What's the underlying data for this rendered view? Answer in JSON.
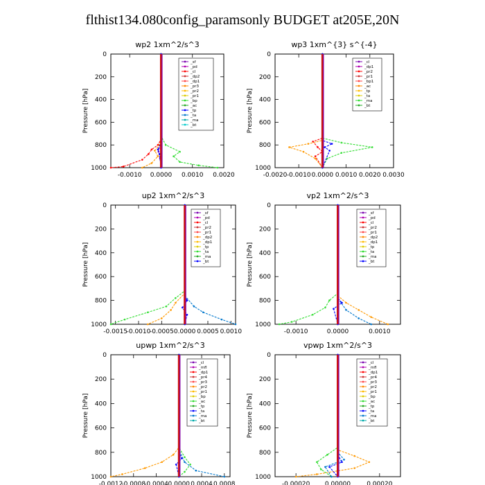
{
  "title": "flthist134.080config_paramsonly  BUDGET at205E,20N",
  "chart_data": [
    {
      "type": "line",
      "title": "wp2   1xm^2/s^3",
      "ylabel": "Pressure  [hPa]",
      "xlim": [
        -0.0016,
        0.002
      ],
      "ylim": [
        1000,
        0
      ],
      "xticks": [
        -0.001,
        0,
        0.001,
        0.002
      ],
      "xtick_labels": [
        "-0.0010",
        "0.0000",
        "0.0010",
        "0.0020"
      ],
      "yticks": [
        0,
        200,
        400,
        600,
        800,
        1000
      ],
      "legend": [
        "_sf",
        "_pd",
        "_cl",
        "_dp2",
        "_dp1",
        "_pr3",
        "_pr2",
        "_pr1",
        "_bp",
        "_ac",
        "_tp",
        "_ta",
        "_ma",
        "_bt"
      ],
      "series": [
        {
          "name": "_pd",
          "color": "#7a00b0",
          "points": [
            [
              0,
              0
            ],
            [
              0,
              600
            ],
            [
              0,
              750
            ],
            [
              -3e-05,
              800
            ],
            [
              -8e-05,
              860
            ],
            [
              -3e-05,
              920
            ],
            [
              0,
              980
            ],
            [
              0,
              1000
            ]
          ]
        },
        {
          "name": "_dp1",
          "color": "#ff0000",
          "points": [
            [
              0,
              0
            ],
            [
              0,
              750
            ],
            [
              -0.0001,
              800
            ],
            [
              -0.0003,
              840
            ],
            [
              -0.0004,
              880
            ],
            [
              -0.0006,
              930
            ],
            [
              -0.0012,
              990
            ],
            [
              -0.0016,
              1000
            ]
          ]
        },
        {
          "name": "_pr3",
          "color": "#ff9900",
          "points": [
            [
              0,
              0
            ],
            [
              0,
              750
            ],
            [
              -5e-05,
              800
            ],
            [
              -0.0002,
              850
            ],
            [
              -0.0001,
              900
            ],
            [
              -0.0003,
              960
            ],
            [
              -0.0006,
              1000
            ]
          ]
        },
        {
          "name": "_ac",
          "color": "#33dd33",
          "points": [
            [
              0,
              0
            ],
            [
              0,
              720
            ],
            [
              0.00015,
              800
            ],
            [
              0.0006,
              860
            ],
            [
              0.0004,
              900
            ],
            [
              0.0006,
              950
            ],
            [
              0.0012,
              980
            ],
            [
              0.0018,
              1000
            ]
          ]
        },
        {
          "name": "_tp",
          "color": "#0000ff",
          "points": [
            [
              0,
              0
            ],
            [
              0,
              780
            ],
            [
              -0.0001,
              840
            ],
            [
              -5e-05,
              880
            ],
            [
              0,
              1000
            ]
          ]
        }
      ]
    },
    {
      "type": "line",
      "title": "wp3   1xm^{3} s^{-4}",
      "ylabel": "Pressure  [hPa]",
      "xlim": [
        -0.002,
        0.003
      ],
      "ylim": [
        1000,
        0
      ],
      "xticks": [
        -0.002,
        -0.001,
        0,
        0.001,
        0.002,
        0.003
      ],
      "xtick_labels": [
        "-0.0020",
        "-0.0010",
        "0.0000",
        "0.0010",
        "0.0020",
        "0.0030"
      ],
      "yticks": [
        0,
        200,
        400,
        600,
        800,
        1000
      ],
      "legend": [
        "_cl",
        "_dp1",
        "_pr2",
        "_pr1",
        "_bp1",
        "_ac",
        "_tp",
        "_ta",
        "_ma",
        "_bt"
      ],
      "series": [
        {
          "name": "_dp1",
          "color": "#ff0000",
          "points": [
            [
              0,
              0
            ],
            [
              0,
              740
            ],
            [
              -0.0004,
              770
            ],
            [
              -0.0002,
              820
            ],
            [
              0,
              860
            ],
            [
              -0.0003,
              900
            ],
            [
              0,
              1000
            ]
          ]
        },
        {
          "name": "_pr2",
          "color": "#ff9900",
          "points": [
            [
              0,
              0
            ],
            [
              0,
              760
            ],
            [
              -0.0006,
              790
            ],
            [
              -0.0014,
              820
            ],
            [
              -0.0008,
              860
            ],
            [
              -0.0003,
              920
            ],
            [
              0,
              1000
            ]
          ]
        },
        {
          "name": "_ac",
          "color": "#33dd33",
          "points": [
            [
              0,
              0
            ],
            [
              0,
              740
            ],
            [
              0.0008,
              780
            ],
            [
              0.0021,
              820
            ],
            [
              0.0008,
              870
            ],
            [
              0.0002,
              920
            ],
            [
              0,
              1000
            ]
          ]
        },
        {
          "name": "_tp",
          "color": "#0000ff",
          "points": [
            [
              0,
              0
            ],
            [
              0,
              760
            ],
            [
              0.0004,
              790
            ],
            [
              0.0001,
              820
            ],
            [
              0.0003,
              850
            ],
            [
              0,
              1000
            ]
          ]
        }
      ]
    },
    {
      "type": "line",
      "title": "up2   1xm^2/s^3",
      "ylabel": "Pressure  [hPa]",
      "xlim": [
        -0.0016,
        0.0011
      ],
      "ylim": [
        1000,
        0
      ],
      "xticks": [
        -0.0015,
        -0.001,
        -0.0005,
        0,
        0.0005,
        0.001
      ],
      "xtick_labels": [
        "-0.0015",
        "-0.0010",
        "-0.0005",
        "0.0000",
        "0.0005",
        "0.0010"
      ],
      "yticks": [
        0,
        200,
        400,
        600,
        800,
        1000
      ],
      "legend": [
        "_sf",
        "_pd",
        "_cl",
        "_pr2",
        "_pr1",
        "_dp2",
        "_dp1",
        "_tp",
        "_ta",
        "_ma",
        "_bt"
      ],
      "series": [
        {
          "name": "_dp1",
          "color": "#33dd33",
          "points": [
            [
              0,
              0
            ],
            [
              0,
              720
            ],
            [
              -0.0002,
              780
            ],
            [
              -0.0004,
              850
            ],
            [
              -0.0008,
              900
            ],
            [
              -0.0013,
              960
            ],
            [
              -0.0016,
              1000
            ]
          ]
        },
        {
          "name": "_pr2",
          "color": "#ff9900",
          "points": [
            [
              0,
              0
            ],
            [
              0,
              740
            ],
            [
              -0.0002,
              820
            ],
            [
              -0.0003,
              880
            ],
            [
              -0.0005,
              950
            ],
            [
              -0.0008,
              1000
            ]
          ]
        },
        {
          "name": "_ta",
          "color": "#0077cc",
          "points": [
            [
              0,
              0
            ],
            [
              0,
              760
            ],
            [
              0.0002,
              850
            ],
            [
              0.0004,
              900
            ],
            [
              0.0008,
              960
            ],
            [
              0.0011,
              1000
            ]
          ]
        },
        {
          "name": "_tp",
          "color": "#0000ff",
          "points": [
            [
              0,
              0
            ],
            [
              0,
              760
            ],
            [
              5e-05,
              800
            ],
            [
              -5e-05,
              860
            ],
            [
              5e-05,
              920
            ],
            [
              0,
              1000
            ]
          ]
        }
      ]
    },
    {
      "type": "line",
      "title": "vp2   1xm^2/s^3",
      "ylabel": "Pressure  [hPa]",
      "xlim": [
        -0.0015,
        0.0015
      ],
      "ylim": [
        1000,
        0
      ],
      "xticks": [
        -0.001,
        0,
        0.001
      ],
      "xtick_labels": [
        "-0.0010",
        "0.0000",
        "0.0010"
      ],
      "yticks": [
        0,
        200,
        400,
        600,
        800,
        1000
      ],
      "legend": [
        "_sf",
        "_pd",
        "_cl",
        "_pr2",
        "_pr1",
        "_dp2",
        "_dp1",
        "_tp",
        "_ta",
        "_ma",
        "_bt"
      ],
      "series": [
        {
          "name": "_dp1",
          "color": "#33dd33",
          "points": [
            [
              0,
              0
            ],
            [
              0,
              740
            ],
            [
              -0.0002,
              800
            ],
            [
              -0.0003,
              860
            ],
            [
              -0.0006,
              920
            ],
            [
              -0.0011,
              980
            ],
            [
              -0.0014,
              1000
            ]
          ]
        },
        {
          "name": "_pr2",
          "color": "#ff9900",
          "points": [
            [
              0,
              0
            ],
            [
              0,
              760
            ],
            [
              0.0002,
              820
            ],
            [
              0.0005,
              880
            ],
            [
              0.0008,
              940
            ],
            [
              0.0012,
              1000
            ]
          ]
        },
        {
          "name": "_ta",
          "color": "#0077cc",
          "points": [
            [
              0,
              0
            ],
            [
              0,
              780
            ],
            [
              0.0002,
              880
            ],
            [
              0.0005,
              950
            ],
            [
              0.0008,
              1000
            ]
          ]
        },
        {
          "name": "_tp",
          "color": "#0000ff",
          "points": [
            [
              0,
              0
            ],
            [
              0,
              780
            ],
            [
              0.0001,
              820
            ],
            [
              -0.0001,
              870
            ],
            [
              0,
              1000
            ]
          ]
        }
      ]
    },
    {
      "type": "line",
      "title": "upwp   1xm^2/s^3",
      "ylabel": "Pressure  [hPa]",
      "xlim": [
        -0.0012,
        0.0009
      ],
      "ylim": [
        1000,
        0
      ],
      "xticks": [
        -0.0012,
        -0.0008,
        -0.0004,
        0,
        0.0004,
        0.0008
      ],
      "xtick_labels": [
        "-0.0012",
        "-0.0008",
        "-0.0004",
        "0.0000",
        "0.0004",
        "0.0008"
      ],
      "yticks": [
        0,
        200,
        400,
        600,
        800,
        1000
      ],
      "legend": [
        "_cl",
        "_mfl",
        "_dp1",
        "_pr4",
        "_pr3",
        "_pr2",
        "_pr1",
        "_bp",
        "_ac",
        "_tp",
        "_ta",
        "_ma",
        "_bt"
      ],
      "series": [
        {
          "name": "_pr1",
          "color": "#ff9900",
          "points": [
            [
              0,
              0
            ],
            [
              0,
              760
            ],
            [
              -0.0001,
              820
            ],
            [
              -0.0003,
              880
            ],
            [
              -0.0006,
              930
            ],
            [
              -0.001,
              980
            ],
            [
              -0.0012,
              1000
            ]
          ]
        },
        {
          "name": "_ac",
          "color": "#33dd33",
          "points": [
            [
              0,
              0
            ],
            [
              0,
              760
            ],
            [
              0.0001,
              840
            ],
            [
              0.0002,
              900
            ],
            [
              0.0001,
              960
            ],
            [
              0,
              1000
            ]
          ]
        },
        {
          "name": "_ta",
          "color": "#0077cc",
          "points": [
            [
              0,
              0
            ],
            [
              0,
              780
            ],
            [
              0.0001,
              880
            ],
            [
              0.0003,
              950
            ],
            [
              0.0008,
              1000
            ]
          ]
        },
        {
          "name": "_tp",
          "color": "#0000ff",
          "points": [
            [
              0,
              0
            ],
            [
              0,
              800
            ],
            [
              5e-05,
              850
            ],
            [
              -5e-05,
              900
            ],
            [
              0,
              1000
            ]
          ]
        }
      ]
    },
    {
      "type": "line",
      "title": "vpwp   1xm^2/s^3",
      "ylabel": "Pressure  [hPa]",
      "xlim": [
        -0.0003,
        0.0003
      ],
      "ylim": [
        1000,
        0
      ],
      "xticks": [
        -0.0002,
        0,
        0.0002
      ],
      "xtick_labels": [
        "-0.00020",
        "0.00000",
        "0.00020"
      ],
      "yticks": [
        0,
        200,
        400,
        600,
        800,
        1000
      ],
      "legend": [
        "_cl",
        "_mfl",
        "_dp1",
        "_pr4",
        "_pr3",
        "_pr2",
        "_pr1",
        "_bp",
        "_ac",
        "_tp",
        "_ta",
        "_ma",
        "_bt"
      ],
      "series": [
        {
          "name": "_pr1",
          "color": "#ff9900",
          "points": [
            [
              0,
              0
            ],
            [
              0,
              780
            ],
            [
              8e-05,
              830
            ],
            [
              0.00015,
              880
            ],
            [
              8e-05,
              930
            ],
            [
              -0.0001,
              980
            ],
            [
              -0.0002,
              1000
            ]
          ]
        },
        {
          "name": "_ac",
          "color": "#33dd33",
          "points": [
            [
              0,
              0
            ],
            [
              0,
              760
            ],
            [
              -5e-05,
              820
            ],
            [
              -0.0001,
              880
            ],
            [
              -8e-05,
              940
            ],
            [
              -3e-05,
              1000
            ]
          ]
        },
        {
          "name": "_ta",
          "color": "#0077cc",
          "points": [
            [
              0,
              0
            ],
            [
              0,
              800
            ],
            [
              3e-05,
              860
            ],
            [
              -6e-05,
              920
            ],
            [
              -3e-05,
              1000
            ]
          ]
        },
        {
          "name": "_tp",
          "color": "#0000ff",
          "points": [
            [
              0,
              0
            ],
            [
              0,
              820
            ],
            [
              2e-05,
              880
            ],
            [
              -4e-05,
              920
            ],
            [
              0,
              1000
            ]
          ]
        }
      ]
    }
  ]
}
